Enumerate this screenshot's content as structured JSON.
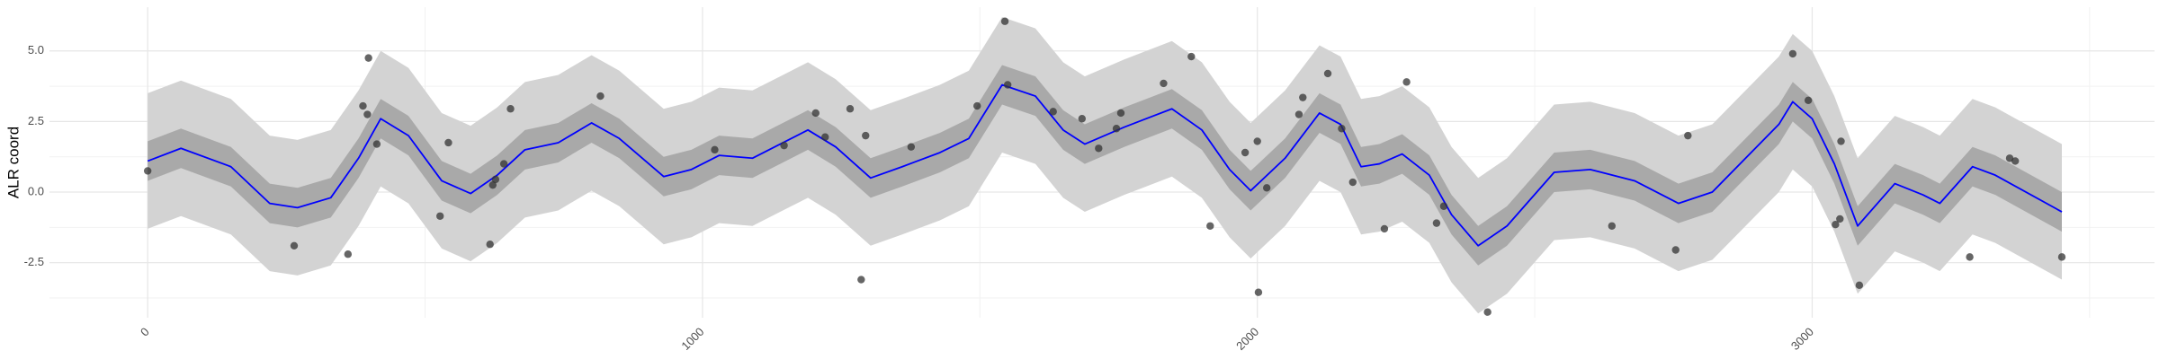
{
  "chart_data": {
    "type": "line",
    "ylabel": "ALR coord",
    "xlim": [
      -177,
      3617
    ],
    "ylim": [
      -4.45,
      6.55
    ],
    "xticks": [
      0,
      1000,
      2000,
      3000
    ],
    "yticks": [
      -2.5,
      {
        "value": 0,
        "label": "0.0"
      },
      2.5,
      {
        "value": 5,
        "label": "5.0"
      }
    ],
    "minor_xticks": [
      500,
      1500,
      2500,
      3500
    ],
    "minor_yticks": [
      -3.75,
      -1.25,
      1.25,
      3.75
    ],
    "grid": true,
    "x": [
      0,
      60,
      150,
      220,
      270,
      330,
      380,
      420,
      470,
      530,
      582,
      630,
      680,
      740,
      800,
      850,
      930,
      980,
      1030,
      1090,
      1140,
      1190,
      1240,
      1303,
      1360,
      1428,
      1480,
      1540,
      1600,
      1650,
      1689,
      1760,
      1846,
      1900,
      1950,
      1988,
      2050,
      2112,
      2150,
      2187,
      2220,
      2261,
      2310,
      2350,
      2398,
      2450,
      2535,
      2600,
      2680,
      2759,
      2820,
      2880,
      2940,
      2965,
      3000,
      3040,
      3082,
      3149,
      3200,
      3230,
      3289,
      3330,
      3450
    ],
    "bands": [
      {
        "color": "#d3d3d3",
        "lower": [
          -1.3,
          -0.85,
          -1.5,
          -2.8,
          -2.95,
          -2.6,
          -1.2,
          0.2,
          -0.4,
          -2.0,
          -2.45,
          -1.8,
          -0.9,
          -0.65,
          0.05,
          -0.5,
          -1.85,
          -1.6,
          -1.1,
          -1.2,
          -0.7,
          -0.2,
          -0.8,
          -1.9,
          -1.5,
          -1.0,
          -0.5,
          1.4,
          1.0,
          -0.2,
          -0.7,
          -0.1,
          0.55,
          -0.2,
          -1.6,
          -2.35,
          -1.2,
          0.4,
          0.0,
          -1.5,
          -1.4,
          -1.05,
          -1.8,
          -3.2,
          -4.3,
          -3.6,
          -1.7,
          -1.6,
          -2.0,
          -2.8,
          -2.4,
          -1.2,
          0.0,
          0.8,
          0.2,
          -1.4,
          -3.6,
          -2.1,
          -2.5,
          -2.8,
          -1.5,
          -1.8,
          -3.1
        ],
        "upper": [
          3.5,
          3.95,
          3.3,
          2.0,
          1.85,
          2.2,
          3.6,
          5.0,
          4.4,
          2.8,
          2.35,
          3.0,
          3.9,
          4.15,
          4.85,
          4.3,
          2.95,
          3.2,
          3.7,
          3.6,
          4.1,
          4.6,
          4.0,
          2.9,
          3.3,
          3.8,
          4.3,
          6.2,
          5.8,
          4.6,
          4.1,
          4.7,
          5.35,
          4.6,
          3.2,
          2.45,
          3.6,
          5.2,
          4.8,
          3.3,
          3.4,
          3.75,
          3.0,
          1.6,
          0.5,
          1.2,
          3.1,
          3.2,
          2.8,
          2.0,
          2.4,
          3.6,
          4.8,
          5.6,
          5.0,
          3.4,
          1.2,
          2.7,
          2.3,
          2.0,
          3.3,
          3.0,
          1.7
        ]
      },
      {
        "color": "#a9a9a9",
        "lower": [
          0.4,
          0.85,
          0.2,
          -1.1,
          -1.25,
          -0.9,
          0.5,
          1.9,
          1.3,
          -0.3,
          -0.75,
          -0.1,
          0.8,
          1.05,
          1.75,
          1.2,
          -0.15,
          0.1,
          0.6,
          0.5,
          1.0,
          1.5,
          0.9,
          -0.2,
          0.2,
          0.7,
          1.2,
          3.1,
          2.7,
          1.5,
          1.0,
          1.6,
          2.25,
          1.5,
          0.1,
          -0.65,
          0.5,
          2.1,
          1.7,
          0.2,
          0.3,
          0.65,
          -0.1,
          -1.5,
          -2.6,
          -1.9,
          0.0,
          0.1,
          -0.3,
          -1.1,
          -0.7,
          0.5,
          1.7,
          2.5,
          1.9,
          0.3,
          -1.9,
          -0.4,
          -0.8,
          -1.1,
          0.2,
          -0.1,
          -1.4
        ],
        "upper": [
          1.8,
          2.25,
          1.6,
          0.3,
          0.15,
          0.5,
          1.9,
          3.3,
          2.7,
          1.1,
          0.65,
          1.3,
          2.2,
          2.45,
          3.15,
          2.6,
          1.25,
          1.5,
          2.0,
          1.9,
          2.4,
          2.9,
          2.3,
          1.2,
          1.6,
          2.1,
          2.6,
          4.5,
          4.1,
          2.9,
          2.4,
          3.0,
          3.65,
          2.9,
          1.5,
          0.75,
          1.9,
          3.5,
          3.1,
          1.6,
          1.7,
          2.05,
          1.3,
          -0.1,
          -1.2,
          -0.5,
          1.4,
          1.5,
          1.1,
          0.3,
          0.7,
          1.9,
          3.1,
          3.9,
          3.3,
          1.7,
          -0.5,
          1.0,
          0.6,
          0.3,
          1.6,
          1.3,
          0.0
        ]
      }
    ],
    "line": {
      "color": "#0000ff",
      "values": [
        1.1,
        1.55,
        0.9,
        -0.4,
        -0.55,
        -0.2,
        1.2,
        2.6,
        2.0,
        0.4,
        -0.05,
        0.6,
        1.5,
        1.75,
        2.45,
        1.9,
        0.55,
        0.8,
        1.3,
        1.2,
        1.7,
        2.2,
        1.6,
        0.5,
        0.9,
        1.4,
        1.9,
        3.8,
        3.4,
        2.2,
        1.7,
        2.3,
        2.95,
        2.2,
        0.8,
        0.05,
        1.2,
        2.8,
        2.4,
        0.9,
        1.0,
        1.35,
        0.6,
        -0.8,
        -1.9,
        -1.2,
        0.7,
        0.8,
        0.4,
        -0.4,
        0.0,
        1.2,
        2.4,
        3.2,
        2.6,
        1.0,
        -1.2,
        0.3,
        -0.1,
        -0.4,
        0.9,
        0.6,
        -0.7
      ]
    },
    "points": {
      "color": "#333333",
      "x": [
        0,
        264,
        361,
        388,
        396,
        398,
        413,
        527,
        542,
        617,
        622,
        627,
        642,
        654,
        816,
        1022,
        1147,
        1204,
        1221,
        1266,
        1286,
        1294,
        1376,
        1495,
        1545,
        1550,
        1632,
        1684,
        1714,
        1746,
        1754,
        1831,
        1881,
        1915,
        1978,
        2000,
        2002,
        2017,
        2075,
        2082,
        2127,
        2152,
        2172,
        2229,
        2269,
        2323,
        2336,
        2415,
        2639,
        2754,
        2776,
        2965,
        2993,
        3042,
        3050,
        3052,
        3085,
        3284,
        3356,
        3366,
        3450
      ],
      "y": [
        0.75,
        -1.9,
        -2.2,
        3.05,
        2.75,
        4.75,
        1.7,
        -0.85,
        1.75,
        -1.85,
        0.25,
        0.45,
        1.0,
        2.95,
        3.4,
        1.5,
        1.65,
        2.8,
        1.95,
        2.95,
        -3.1,
        2.0,
        1.6,
        3.05,
        6.05,
        3.8,
        2.85,
        2.6,
        1.55,
        2.25,
        2.8,
        3.85,
        4.8,
        -1.2,
        1.4,
        1.8,
        -3.55,
        0.15,
        2.75,
        3.35,
        4.2,
        2.25,
        0.35,
        -1.3,
        3.9,
        -1.1,
        -0.5,
        -4.25,
        -1.2,
        -2.05,
        2.0,
        4.9,
        3.25,
        -1.15,
        -0.95,
        1.8,
        -3.3,
        -2.3,
        1.2,
        1.1,
        -2.3
      ]
    }
  }
}
